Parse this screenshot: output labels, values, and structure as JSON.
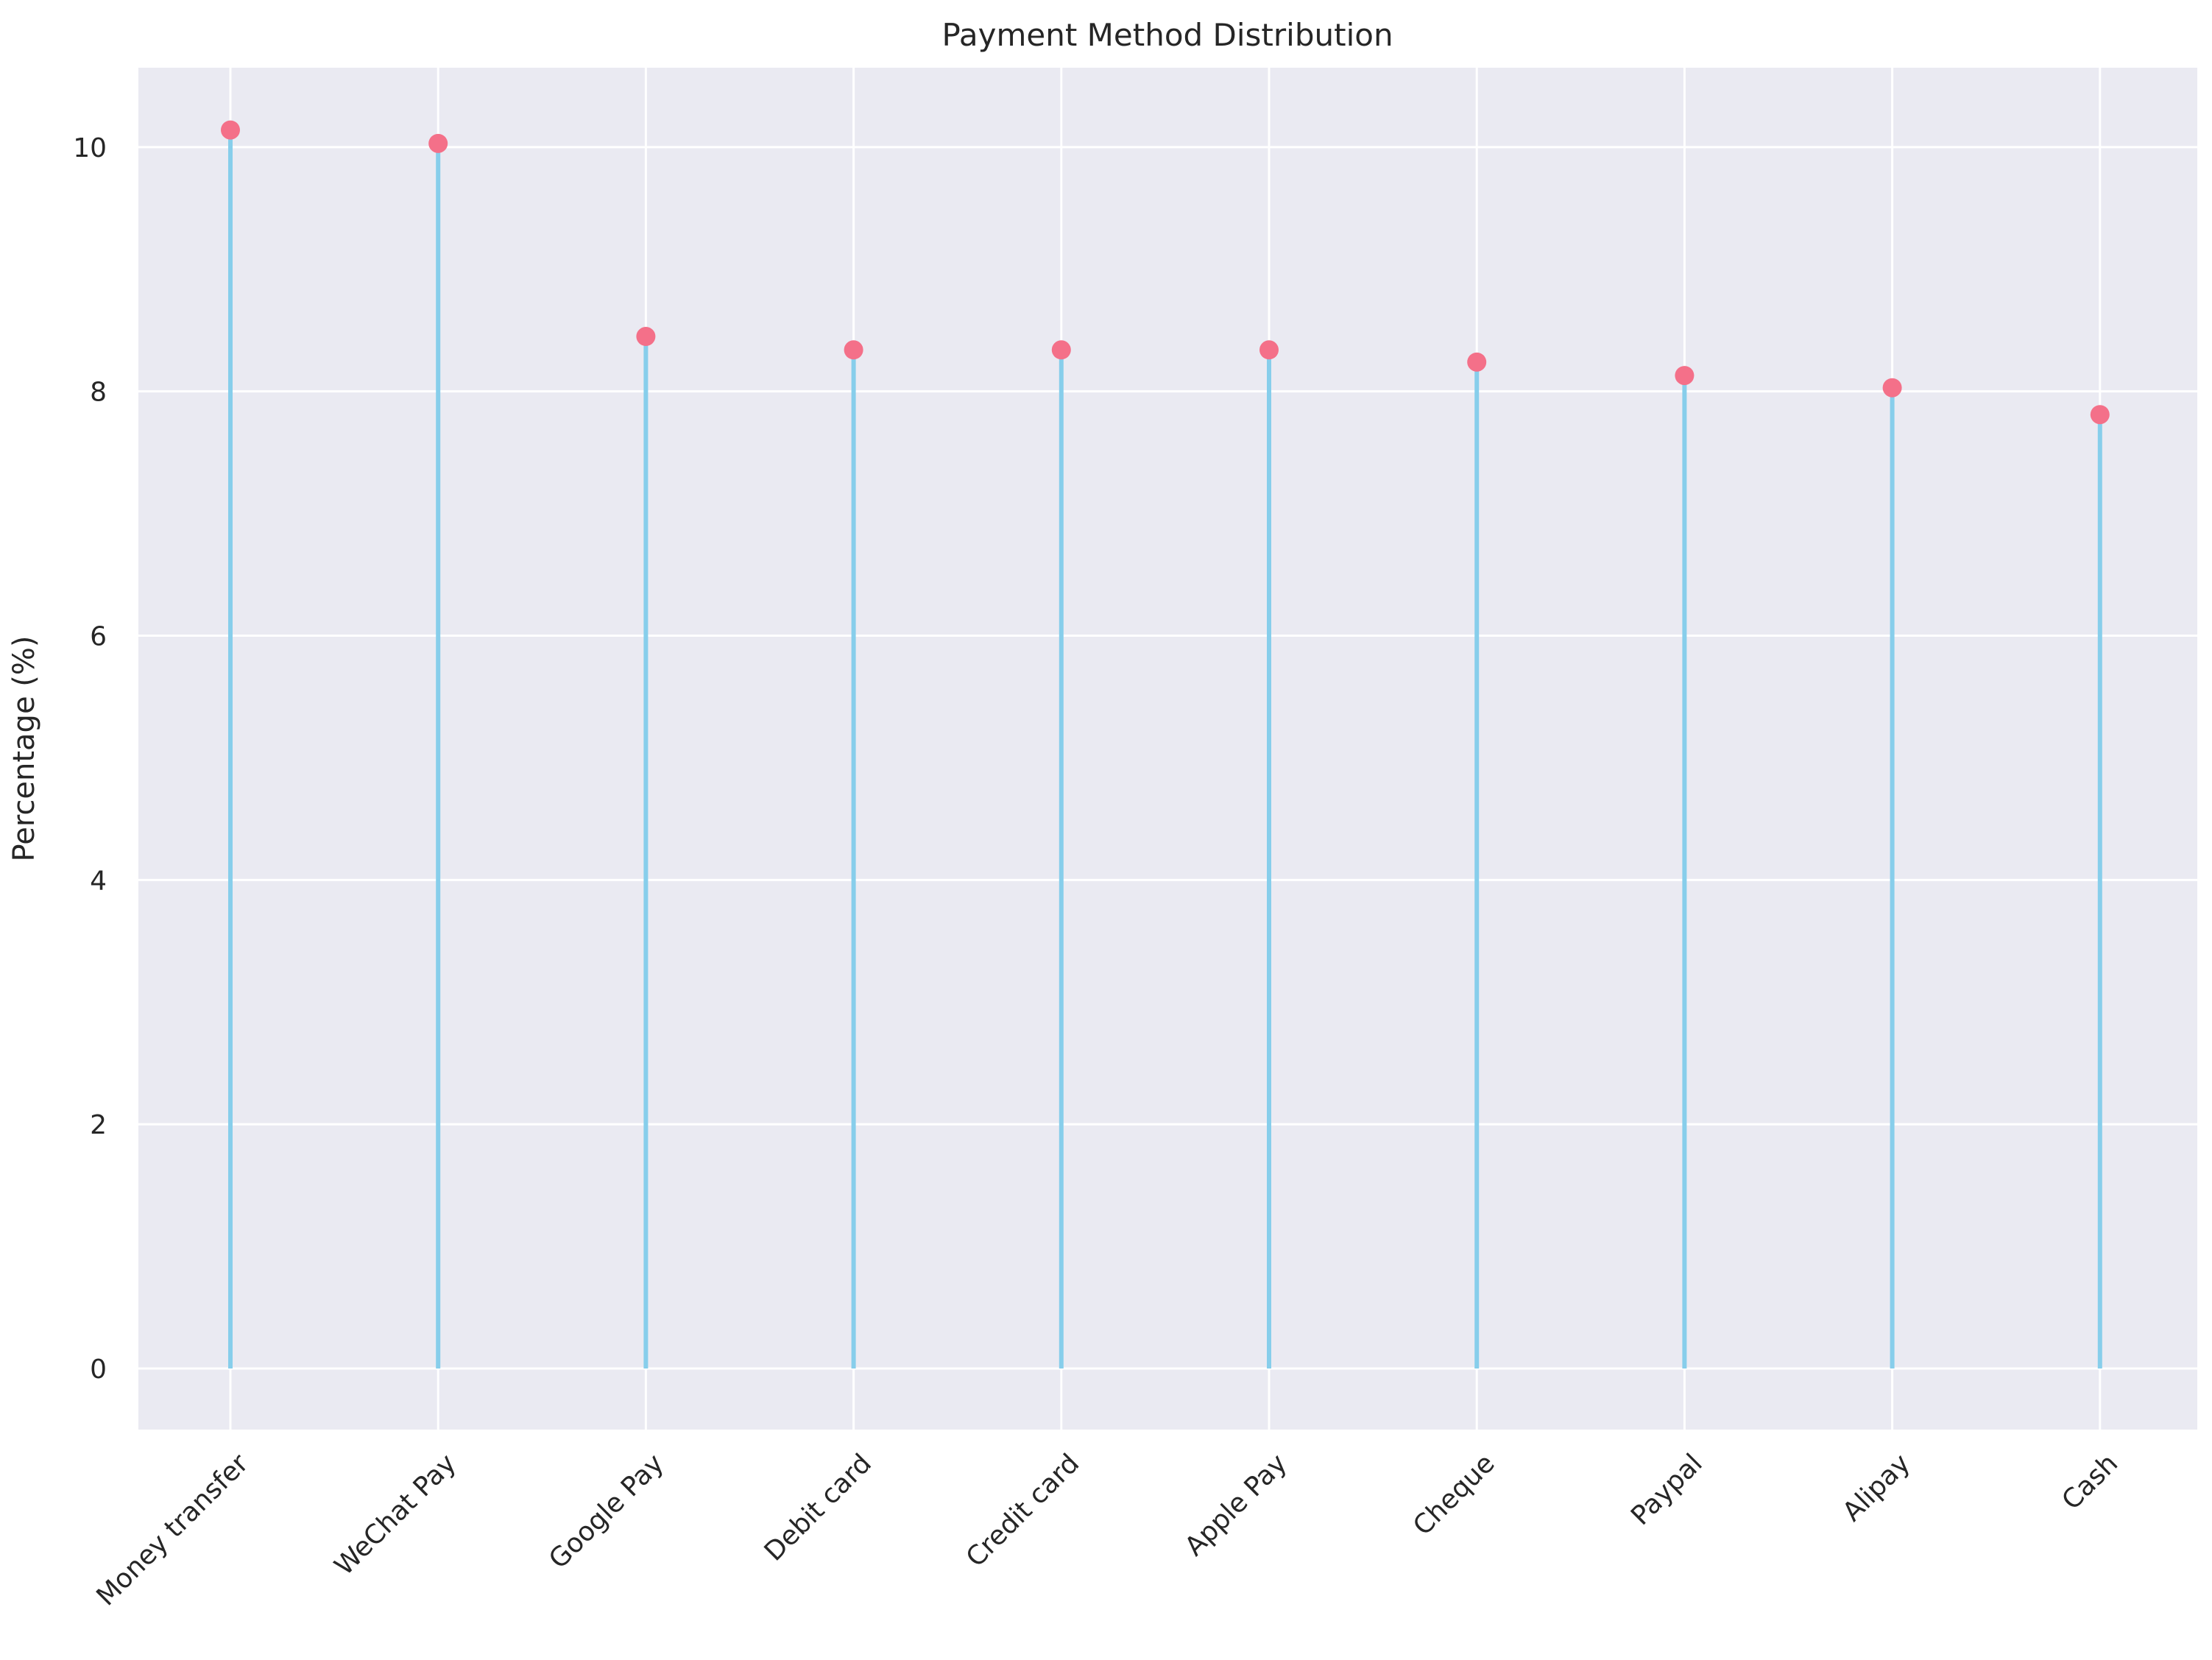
{
  "chart_data": {
    "type": "lollipop",
    "title": "Payment Method Distribution",
    "xlabel": "",
    "ylabel": "Percentage (%)",
    "categories": [
      "Money transfer",
      "WeChat Pay",
      "Google Pay",
      "Debit card",
      "Credit card",
      "Apple Pay",
      "Cheque",
      "Paypal",
      "Alipay",
      "Cash"
    ],
    "values": [
      10.14,
      10.03,
      8.45,
      8.34,
      8.34,
      8.34,
      8.24,
      8.13,
      8.03,
      7.81
    ],
    "ylim": [
      -0.5,
      10.65
    ],
    "yticks": [
      0,
      2,
      4,
      6,
      8,
      10
    ],
    "grid": true,
    "colors": {
      "background": "#eaeaf2",
      "grid": "#ffffff",
      "stem": "#87ceeb",
      "marker": "#f47089"
    }
  }
}
